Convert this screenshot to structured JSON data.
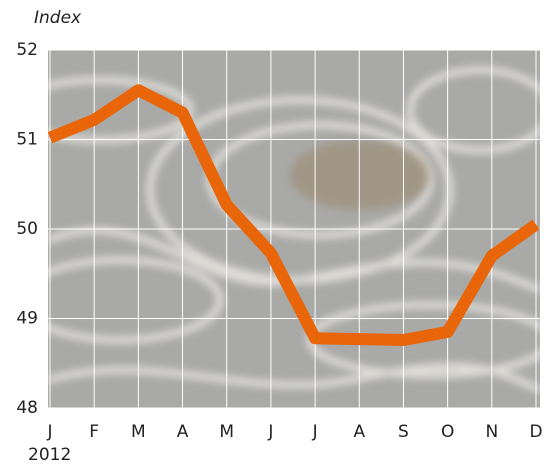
{
  "chart_data": {
    "type": "line",
    "y_label": "Index",
    "annotation": "2012",
    "categories": [
      "J",
      "F",
      "M",
      "A",
      "M",
      "J",
      "J",
      "A",
      "S",
      "O",
      "N",
      "D"
    ],
    "series": [
      {
        "name": "Index",
        "color": "#e8650a",
        "values": [
          51.02,
          51.22,
          51.55,
          51.3,
          50.27,
          49.73,
          48.78,
          48.77,
          48.76,
          48.85,
          49.7,
          50.05
        ]
      }
    ],
    "ylim": [
      48,
      52
    ],
    "yticks": [
      48,
      49,
      50,
      51,
      52
    ],
    "grid": true
  }
}
